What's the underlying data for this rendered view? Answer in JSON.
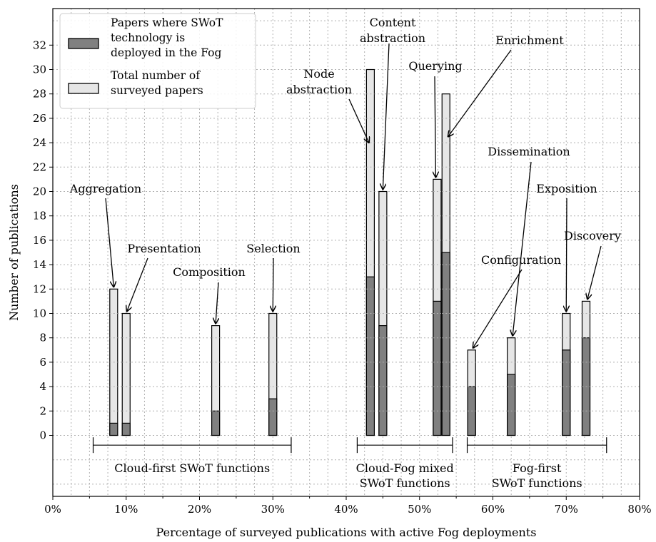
{
  "chart_data": {
    "type": "bar",
    "xlabel": "Percentage of surveyed publications with active Fog deployments",
    "ylabel": "Number of publications",
    "xlim": [
      0,
      80
    ],
    "ylim": [
      -5,
      35
    ],
    "x_ticks": [
      "0%",
      "10%",
      "20%",
      "30%",
      "40%",
      "50%",
      "60%",
      "70%",
      "80%"
    ],
    "y_ticks": [
      "0",
      "2",
      "4",
      "6",
      "8",
      "10",
      "12",
      "14",
      "16",
      "18",
      "20",
      "22",
      "24",
      "26",
      "28",
      "30",
      "32"
    ],
    "grid": true,
    "legend_position": "top-left",
    "series": [
      {
        "name": "Papers where SWoT technology is deployed in the Fog",
        "color": "#808080"
      },
      {
        "name": "Total number of surveyed papers",
        "color": "#e6e6e6"
      }
    ],
    "functions": [
      {
        "name": "Aggregation",
        "x": 8.3,
        "fog": 1,
        "total": 12
      },
      {
        "name": "Presentation",
        "x": 10.0,
        "fog": 1,
        "total": 10
      },
      {
        "name": "Composition",
        "x": 22.2,
        "fog": 2,
        "total": 9
      },
      {
        "name": "Selection",
        "x": 30.0,
        "fog": 3,
        "total": 10
      },
      {
        "name": "Node abstraction",
        "x": 43.3,
        "fog": 13,
        "total": 30
      },
      {
        "name": "Content abstraction",
        "x": 45.0,
        "fog": 9,
        "total": 20
      },
      {
        "name": "Querying",
        "x": 52.4,
        "fog": 11,
        "total": 21
      },
      {
        "name": "Enrichment",
        "x": 53.6,
        "fog": 15,
        "total": 28
      },
      {
        "name": "Configuration",
        "x": 57.1,
        "fog": 4,
        "total": 7
      },
      {
        "name": "Dissemination",
        "x": 62.5,
        "fog": 5,
        "total": 8
      },
      {
        "name": "Exposition",
        "x": 70.0,
        "fog": 7,
        "total": 10
      },
      {
        "name": "Discovery",
        "x": 72.7,
        "fog": 8,
        "total": 11
      }
    ],
    "groups": [
      {
        "label_lines": [
          "Cloud-first SWoT functions"
        ],
        "range": [
          5.5,
          32.5
        ]
      },
      {
        "label_lines": [
          "Cloud-Fog mixed",
          "SWoT functions"
        ],
        "range": [
          41.5,
          54.5
        ]
      },
      {
        "label_lines": [
          "Fog-first",
          "SWoT functions"
        ],
        "range": [
          56.5,
          75.5
        ]
      }
    ],
    "annotations": [
      {
        "label_lines": [
          "Aggregation"
        ],
        "target": "Aggregation"
      },
      {
        "label_lines": [
          "Presentation"
        ],
        "target": "Presentation"
      },
      {
        "label_lines": [
          "Composition"
        ],
        "target": "Composition"
      },
      {
        "label_lines": [
          "Selection"
        ],
        "target": "Selection"
      },
      {
        "label_lines": [
          "Node",
          "abstraction"
        ],
        "target": "Node abstraction"
      },
      {
        "label_lines": [
          "Content",
          "abstraction"
        ],
        "target": "Content abstraction"
      },
      {
        "label_lines": [
          "Querying"
        ],
        "target": "Querying"
      },
      {
        "label_lines": [
          "Enrichment"
        ],
        "target": "Enrichment"
      },
      {
        "label_lines": [
          "Configuration"
        ],
        "target": "Configuration"
      },
      {
        "label_lines": [
          "Dissemination"
        ],
        "target": "Dissemination"
      },
      {
        "label_lines": [
          "Exposition"
        ],
        "target": "Exposition"
      },
      {
        "label_lines": [
          "Discovery"
        ],
        "target": "Discovery"
      }
    ],
    "legend": [
      {
        "label_lines": [
          "Papers where SWoT",
          "technology is",
          "deployed in the Fog"
        ],
        "color": "#808080"
      },
      {
        "label_lines": [
          "Total number of",
          "surveyed papers"
        ],
        "color": "#e6e6e6"
      }
    ]
  }
}
